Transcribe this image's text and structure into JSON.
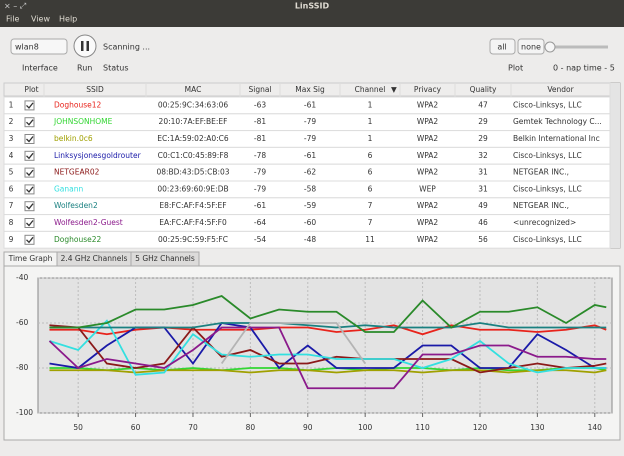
{
  "window": {
    "title": "LinSSID"
  },
  "menu": [
    "File",
    "View",
    "Help"
  ],
  "toolbar": {
    "interface": "wlan8",
    "status": "Scanning ...",
    "interface_label": "Interface",
    "run_label": "Run",
    "status_label": "Status",
    "all": "all",
    "none": "none",
    "plot_label": "Plot",
    "nap_label": "0 - nap time - 5"
  },
  "table": {
    "headers": [
      "Plot",
      "SSID",
      "MAC",
      "Signal",
      "Max Sig",
      "Channel",
      "Privacy",
      "Quality",
      "Vendor"
    ],
    "rows": [
      {
        "num": 1,
        "ssid": "Doghouse12",
        "color": "#e8231b",
        "mac": "00:25:9C:34:63:06",
        "signal": -63,
        "max_sig": -61,
        "channel": 1,
        "privacy": "WPA2",
        "quality": 47,
        "vendor": "Cisco-Linksys, LLC"
      },
      {
        "num": 2,
        "ssid": "JOHNSONHOME",
        "color": "#33d633",
        "mac": "20:10:7A:EF:BE:EF",
        "signal": -81,
        "max_sig": -79,
        "channel": 1,
        "privacy": "WPA2",
        "quality": 29,
        "vendor": "Gemtek Technology C..."
      },
      {
        "num": 3,
        "ssid": "belkin.0c6",
        "color": "#a0a000",
        "mac": "EC:1A:59:02:A0:C6",
        "signal": -81,
        "max_sig": -79,
        "channel": 1,
        "privacy": "WPA2",
        "quality": 29,
        "vendor": "Belkin International Inc"
      },
      {
        "num": 4,
        "ssid": "Linksysjonesgoldrouter",
        "color": "#1a1aa8",
        "mac": "C0:C1:C0:45:89:F8",
        "signal": -78,
        "max_sig": -61,
        "channel": 6,
        "privacy": "WPA2",
        "quality": 32,
        "vendor": "Cisco-Linksys, LLC"
      },
      {
        "num": 5,
        "ssid": "NETGEAR02",
        "color": "#8b1a1a",
        "mac": "08:BD:43:D5:CB:03",
        "signal": -79,
        "max_sig": -62,
        "channel": 6,
        "privacy": "WPA2",
        "quality": 31,
        "vendor": "NETGEAR INC.,"
      },
      {
        "num": 6,
        "ssid": "Ganann",
        "color": "#33e0e0",
        "mac": "00:23:69:60:9E:DB",
        "signal": -79,
        "max_sig": -58,
        "channel": 6,
        "privacy": "WEP",
        "quality": 31,
        "vendor": "Cisco-Linksys, LLC"
      },
      {
        "num": 7,
        "ssid": "Wolfesden2",
        "color": "#1a8080",
        "mac": "E8:FC:AF:F4:5F:EF",
        "signal": -61,
        "max_sig": -59,
        "channel": 7,
        "privacy": "WPA2",
        "quality": 49,
        "vendor": "NETGEAR INC.,"
      },
      {
        "num": 8,
        "ssid": "Wolfesden2-Guest",
        "color": "#8b1a8b",
        "mac": "EA:FC:AF:F4:5F:F0",
        "signal": -64,
        "max_sig": -60,
        "channel": 7,
        "privacy": "WPA2",
        "quality": 46,
        "vendor": "<unrecognized>"
      },
      {
        "num": 9,
        "ssid": "Doghouse22",
        "color": "#2a8a2a",
        "mac": "00:25:9C:59:F5:FC",
        "signal": -54,
        "max_sig": -48,
        "channel": 11,
        "privacy": "WPA2",
        "quality": 56,
        "vendor": "Cisco-Linksys, LLC"
      }
    ]
  },
  "tabs": [
    "Time Graph",
    "2.4 GHz Channels",
    "5 GHz Channels"
  ],
  "chart_data": {
    "type": "line",
    "x": [
      45,
      50,
      55,
      60,
      65,
      70,
      75,
      80,
      85,
      90,
      95,
      100,
      105,
      110,
      115,
      120,
      125,
      130,
      135,
      140,
      142
    ],
    "xlim": [
      43,
      143
    ],
    "xticks": [
      50,
      60,
      70,
      80,
      90,
      100,
      110,
      120,
      130,
      140
    ],
    "ylim": [
      -100,
      -40
    ],
    "yticks": [
      -40,
      -60,
      -80,
      -100
    ],
    "grid": true,
    "series": [
      {
        "color": "#e8231b",
        "values": [
          -63,
          -63,
          -65,
          -63,
          -62,
          -63,
          -63,
          -63,
          -62,
          -62,
          -64,
          -63,
          -61,
          -65,
          -61,
          -63,
          -63,
          -64,
          -63,
          -61,
          -63
        ]
      },
      {
        "color": "#33d633",
        "values": [
          -80,
          -80,
          -81,
          -80,
          -81,
          -80,
          -81,
          -80,
          -80,
          -81,
          -80,
          -81,
          -80,
          -80,
          -81,
          -80,
          -81,
          -81,
          -80,
          -80,
          -81
        ]
      },
      {
        "color": "#a0a000",
        "values": [
          -81,
          -81,
          -81,
          -82,
          -81,
          -81,
          -81,
          -82,
          -81,
          -81,
          -82,
          -81,
          -81,
          -82,
          -81,
          -81,
          -82,
          -81,
          -81,
          -82,
          -81
        ]
      },
      {
        "color": "#1a1aa8",
        "values": [
          -78,
          -80,
          -70,
          -62,
          -62,
          -78,
          -60,
          -62,
          -80,
          -70,
          -80,
          -80,
          -80,
          -70,
          -70,
          -80,
          -80,
          -65,
          -72,
          -80,
          -80
        ]
      },
      {
        "color": "#8b1a1a",
        "values": [
          -61,
          -62,
          -78,
          -80,
          -78,
          -62,
          -75,
          -72,
          -78,
          -78,
          -75,
          -76,
          -76,
          -76,
          -76,
          -82,
          -80,
          -78,
          -80,
          -79,
          -78
        ]
      },
      {
        "color": "#33e0e0",
        "values": [
          -68,
          -72,
          -59,
          -83,
          -82,
          -65,
          -74,
          -75,
          -74,
          -74,
          -76,
          -76,
          -76,
          -80,
          -76,
          -68,
          -78,
          -82,
          -80,
          -80,
          -80
        ]
      },
      {
        "color": "#1a8080",
        "values": [
          -62,
          -62,
          -62,
          -62,
          -62,
          -62,
          -60,
          -60,
          -60,
          -61,
          -62,
          -61,
          -62,
          -62,
          -62,
          -60,
          -62,
          -62,
          -62,
          -62,
          -62
        ]
      },
      {
        "color": "#8b1a8b",
        "values": [
          -68,
          -80,
          -76,
          -78,
          -80,
          -72,
          -62,
          -62,
          -62,
          -89,
          -89,
          -89,
          -89,
          -74,
          -74,
          -70,
          -70,
          -75,
          -75,
          -76,
          -76
        ]
      },
      {
        "color": "#2a8a2a",
        "values": [
          -62,
          -62,
          -60,
          -54,
          -54,
          -52,
          -48,
          -58,
          -54,
          -55,
          -55,
          -64,
          -64,
          -50,
          -62,
          -55,
          -55,
          -53,
          -60,
          -52,
          -53
        ]
      },
      {
        "color": "#b4b4b4",
        "values": [
          null,
          null,
          null,
          null,
          null,
          null,
          -78,
          -60,
          -60,
          -60,
          -60,
          -78,
          null,
          null,
          null,
          null,
          null,
          null,
          null,
          null,
          null
        ]
      }
    ]
  }
}
